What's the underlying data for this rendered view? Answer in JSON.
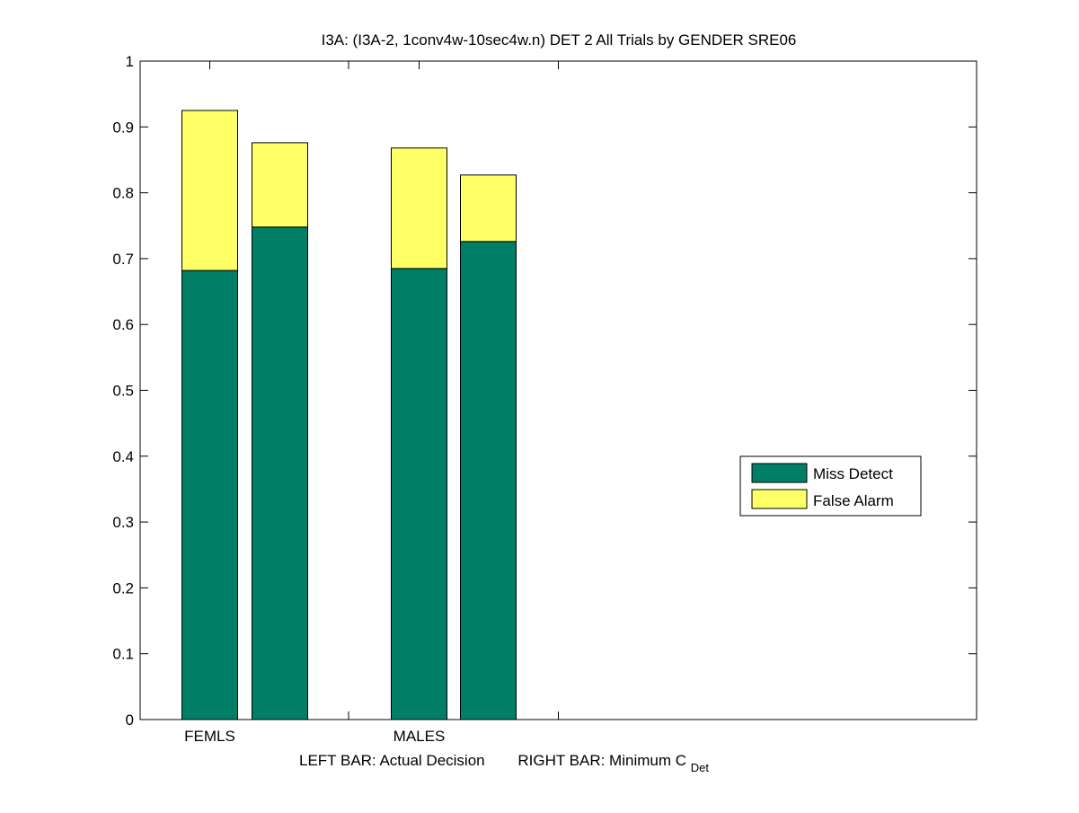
{
  "chart_data": {
    "type": "bar",
    "stacked": true,
    "title": "I3A: (I3A-2, 1conv4w-10sec4w.n) DET 2 All Trials by GENDER SRE06",
    "xlabel": {
      "left_text": "LEFT BAR: Actual Decision",
      "right_text": "RIGHT BAR: Minimum C",
      "right_subscript": "Det"
    },
    "ylabel": "",
    "ylim": [
      0,
      1
    ],
    "yticks": [
      "0",
      "0.1",
      "0.2",
      "0.3",
      "0.4",
      "0.5",
      "0.6",
      "0.7",
      "0.8",
      "0.9",
      "1"
    ],
    "groups": [
      {
        "label": "FEMLS",
        "bars": [
          {
            "name": "Actual Decision",
            "miss": 0.682,
            "false_alarm": 0.243
          },
          {
            "name": "Minimum C_Det",
            "miss": 0.748,
            "false_alarm": 0.128
          }
        ]
      },
      {
        "label": "MALES",
        "bars": [
          {
            "name": "Actual Decision",
            "miss": 0.685,
            "false_alarm": 0.183
          },
          {
            "name": "Minimum C_Det",
            "miss": 0.726,
            "false_alarm": 0.101
          }
        ]
      }
    ],
    "series": [
      {
        "name": "Miss Detect",
        "color": "#007f66"
      },
      {
        "name": "False Alarm",
        "color": "#ffff66"
      }
    ],
    "legend_position": "right",
    "grid": false
  }
}
